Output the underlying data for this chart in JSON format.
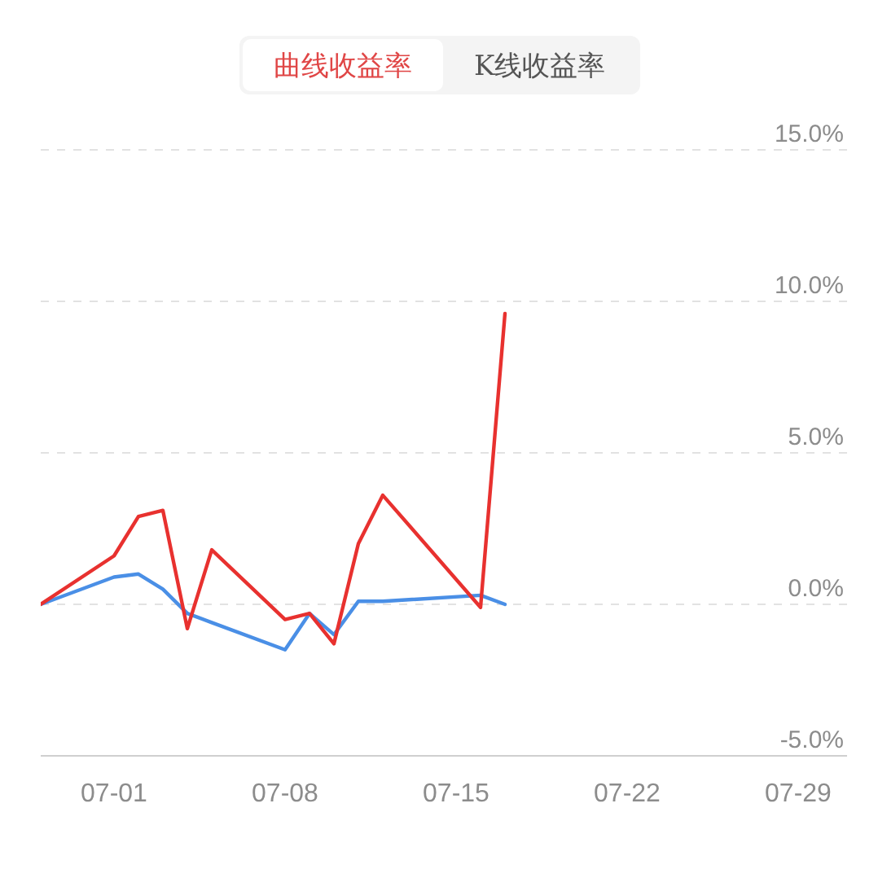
{
  "chart_data": {
    "type": "line",
    "annotations": [
      "曲线收益率",
      "K线收益率"
    ],
    "x": [
      "--06-28",
      "--07-01",
      "--07-02",
      "--07-03",
      "--07-04",
      "--07-05",
      "--07-08",
      "--07-09",
      "--07-10",
      "--07-11",
      "--07-12",
      "--07-16",
      "--07-17"
    ],
    "series": [
      {
        "color": "#4a8fe6",
        "values": [
          0,
          0.9,
          1.0,
          0.5,
          -0.3,
          -0.6,
          -1.5,
          -0.3,
          -1.0,
          0.1,
          0.1,
          0.3,
          0.0
        ]
      },
      {
        "color": "#e8312f",
        "values": [
          0,
          1.6,
          2.9,
          3.1,
          -0.8,
          1.8,
          -0.5,
          -0.3,
          -1.3,
          2.0,
          3.6,
          -0.1,
          9.6
        ]
      }
    ],
    "xlim": [
      "--06-28",
      "--07-31"
    ],
    "xticks": [
      {
        "value": "--07-01",
        "label": "07-01"
      },
      {
        "value": "--07-08",
        "label": "07-08"
      },
      {
        "value": "--07-15",
        "label": "07-15"
      },
      {
        "value": "--07-22",
        "label": "07-22"
      },
      {
        "value": "--07-29",
        "label": "07-29"
      }
    ],
    "ylim": [
      -5,
      15
    ],
    "yticks": [
      {
        "value": -5,
        "label": "-5.0%"
      },
      {
        "value": 0,
        "label": "0.0%"
      },
      {
        "value": 5,
        "label": "5.0%"
      },
      {
        "value": 10,
        "label": "10.0%"
      },
      {
        "value": 15,
        "label": "15.0%"
      }
    ],
    "grid": "y",
    "marker": "none"
  }
}
